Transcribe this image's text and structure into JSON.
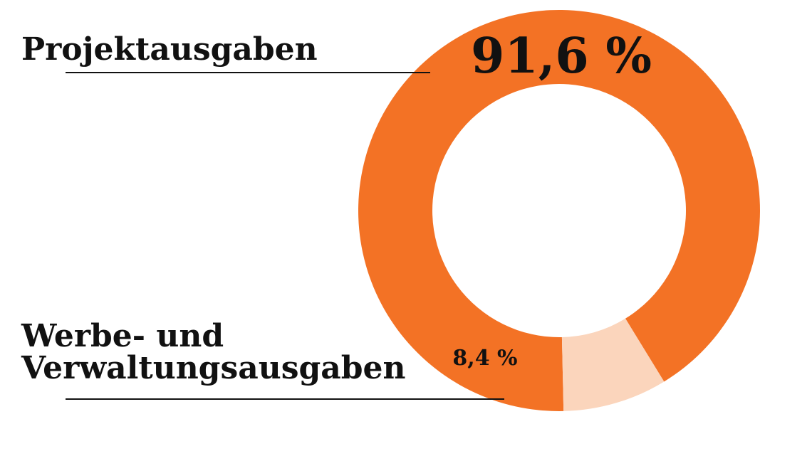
{
  "chart_data": {
    "type": "pie",
    "variant": "donut",
    "categories": [
      "Projektausgaben",
      "Werbe- und Verwaltungsausgaben"
    ],
    "values": [
      91.6,
      8.4
    ],
    "value_labels": [
      "91,6 %",
      "8,4 %"
    ],
    "category_lines": [
      [
        "Projektausgaben"
      ],
      [
        "Werbe- und",
        "Verwaltungsausgaben"
      ]
    ],
    "colors": [
      "#f37225",
      "#fbd5bc"
    ],
    "legend": "labels-left-with-leader-lines"
  }
}
